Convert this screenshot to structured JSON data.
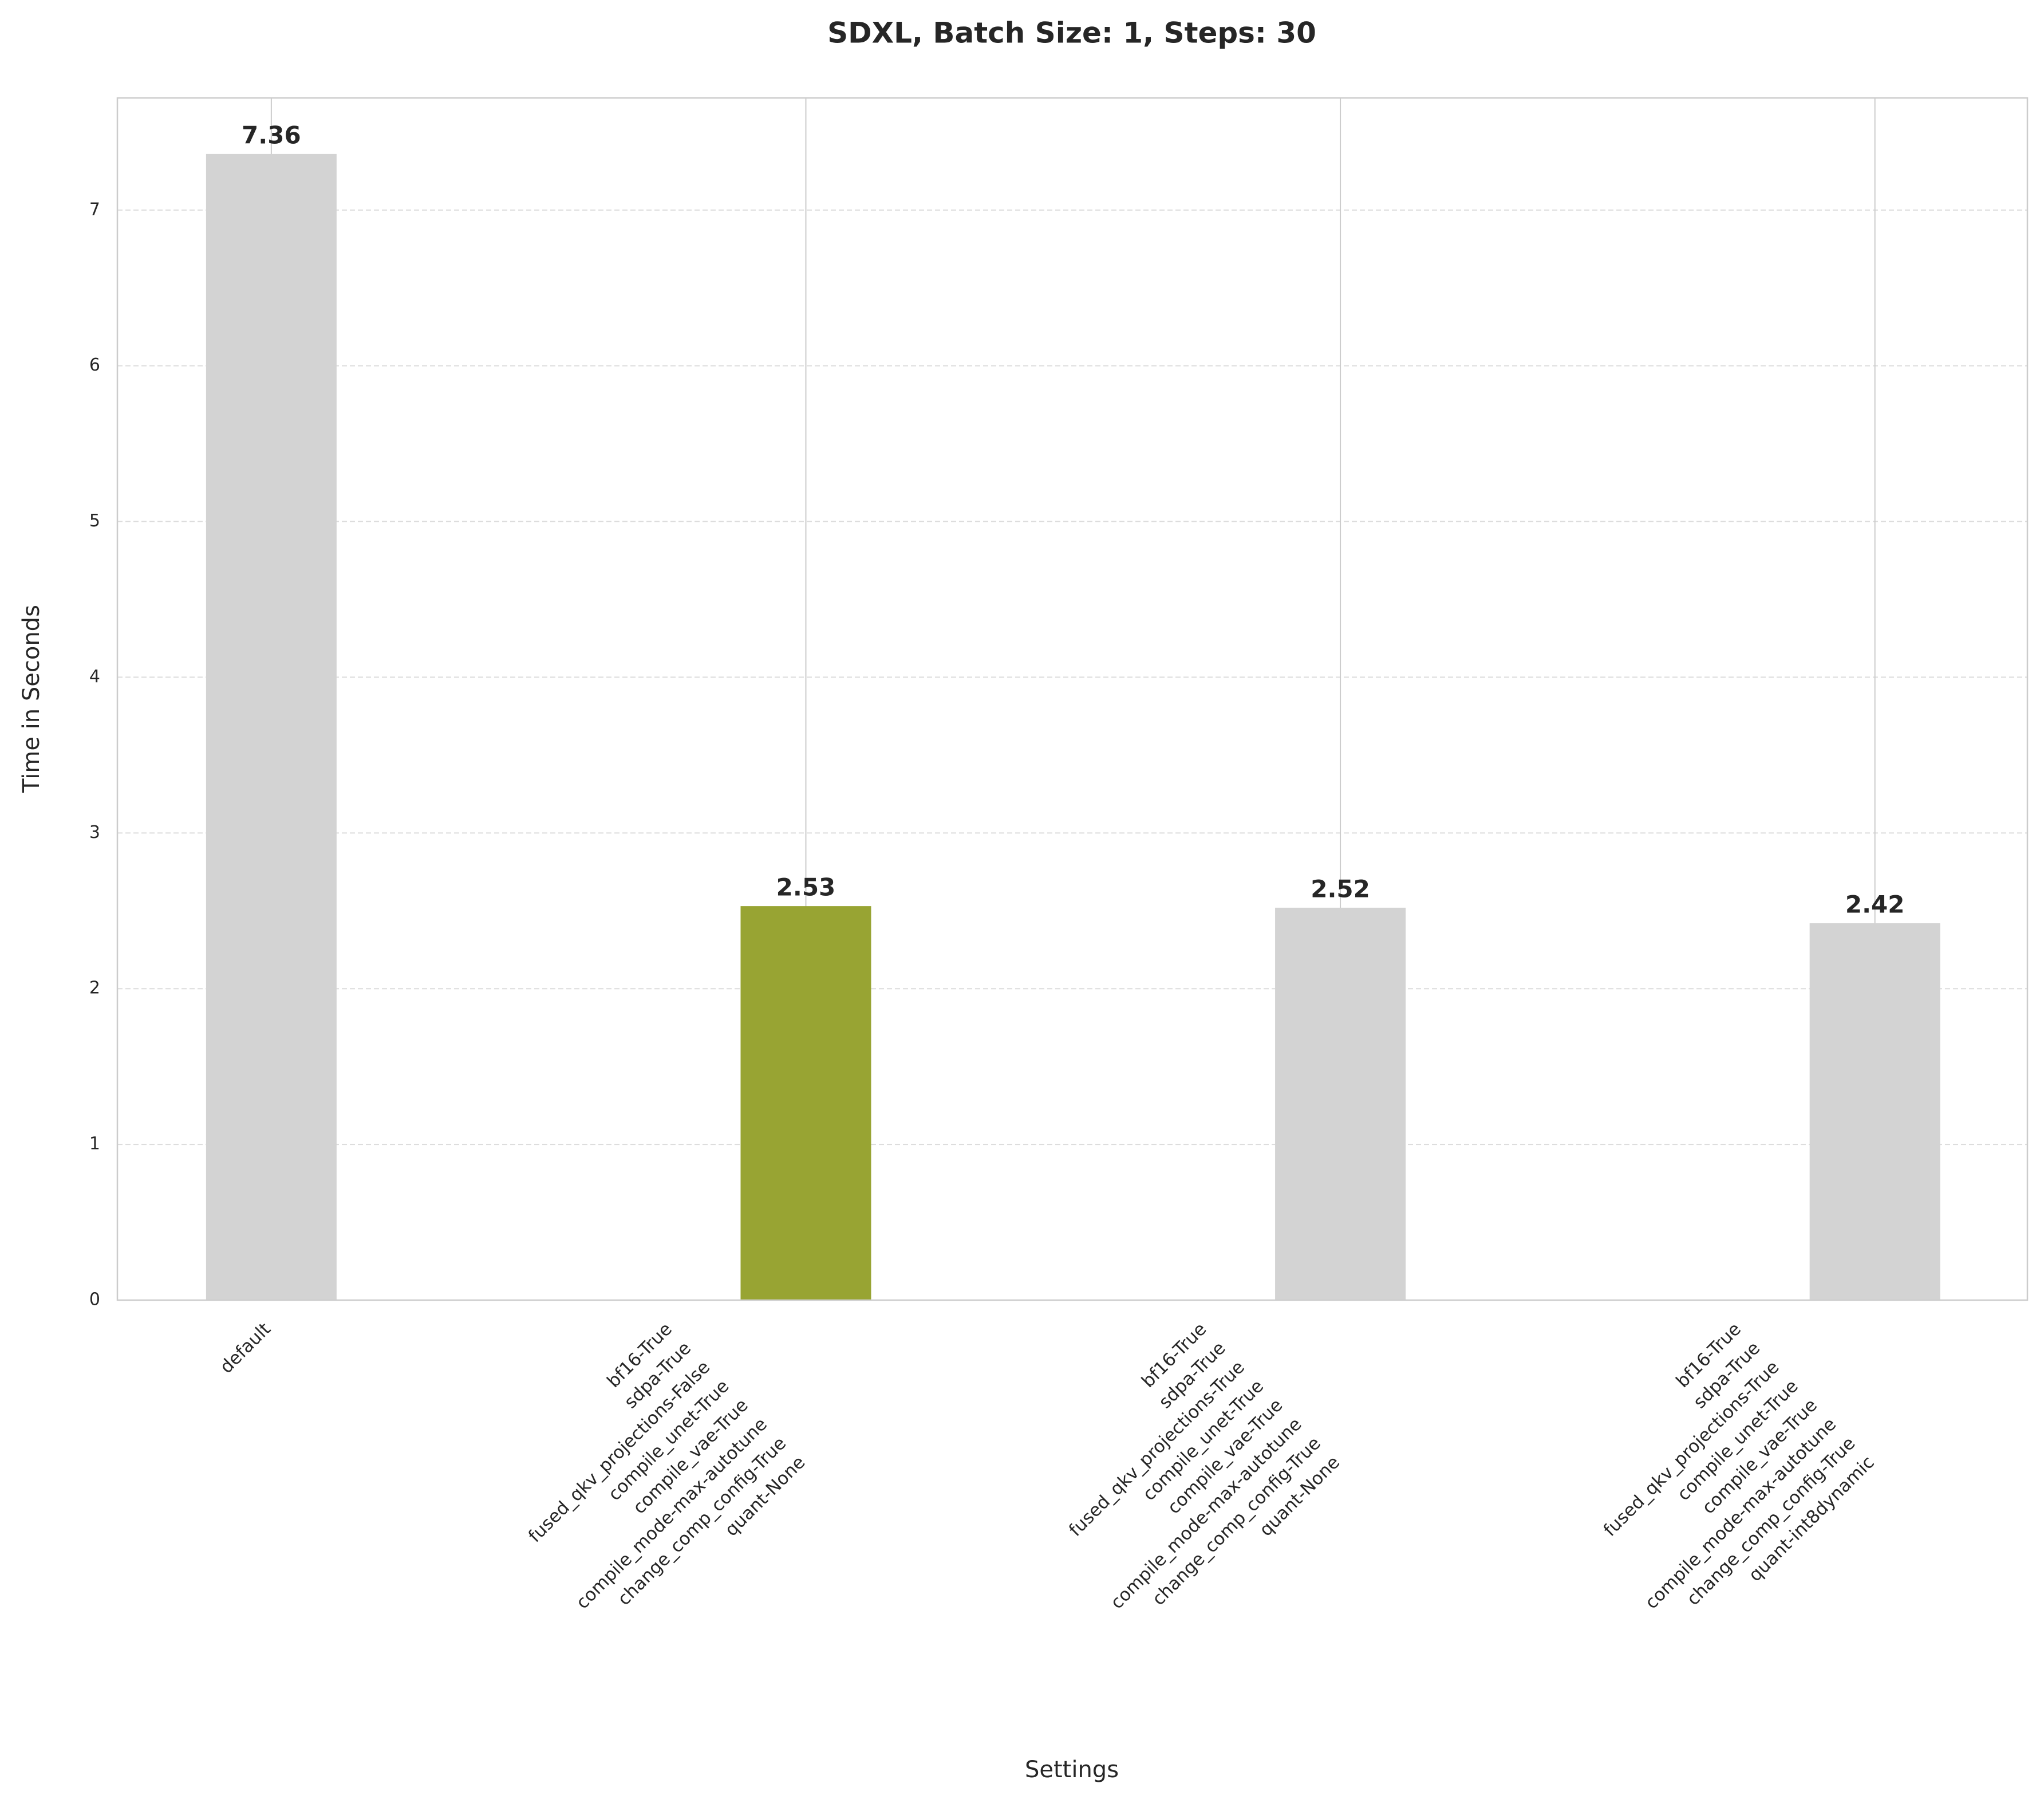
{
  "chart_data": {
    "type": "bar",
    "title": "SDXL, Batch Size: 1, Steps: 30",
    "xlabel": "Settings",
    "ylabel": "Time in Seconds",
    "categories": [
      "default",
      "bf16-True\nsdpa-True\nfused_qkv_projections-False\ncompile_unet-True\ncompile_vae-True\ncompile_mode-max-autotune\nchange_comp_config-True\nquant-None",
      "bf16-True\nsdpa-True\nfused_qkv_projections-True\ncompile_unet-True\ncompile_vae-True\ncompile_mode-max-autotune\nchange_comp_config-True\nquant-None",
      "bf16-True\nsdpa-True\nfused_qkv_projections-True\ncompile_unet-True\ncompile_vae-True\ncompile_mode-max-autotune\nchange_comp_config-True\nquant-int8dynamic"
    ],
    "values": [
      7.36,
      2.53,
      2.52,
      2.42
    ],
    "colors": [
      "#d3d3d3",
      "#98a433",
      "#d3d3d3",
      "#d3d3d3"
    ],
    "ylim": [
      0,
      7.72
    ],
    "yticks": [
      0,
      1,
      2,
      3,
      4,
      5,
      6,
      7
    ],
    "grid": true
  }
}
